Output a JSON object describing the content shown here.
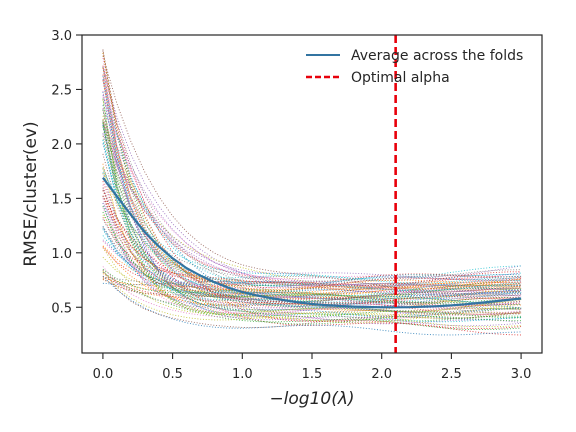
{
  "chart_data": {
    "type": "line",
    "xlabel": "−log10(λ)",
    "ylabel": "RMSE/cluster(ev)",
    "xlim": [
      -0.15,
      3.15
    ],
    "ylim": [
      0.08,
      3.0
    ],
    "xticks": [
      0.0,
      0.5,
      1.0,
      1.5,
      2.0,
      2.5,
      3.0
    ],
    "xtick_labels": [
      "0.0",
      "0.5",
      "1.0",
      "1.5",
      "2.0",
      "2.5",
      "3.0"
    ],
    "yticks": [
      0.5,
      1.0,
      1.5,
      2.0,
      2.5,
      3.0
    ],
    "ytick_labels": [
      "0.5",
      "1.0",
      "1.5",
      "2.0",
      "2.5",
      "3.0"
    ],
    "grid": false,
    "legend_position": "top-right",
    "fold_curves": {
      "style": "dotted",
      "x": [
        0.0,
        0.1,
        0.2,
        0.3,
        0.4,
        0.5,
        0.6,
        0.7,
        0.8,
        0.9,
        1.0,
        1.1,
        1.2,
        1.3,
        1.4,
        1.5,
        1.6,
        1.7,
        1.8,
        1.9,
        2.0,
        2.1,
        2.2,
        2.3,
        2.4,
        2.5,
        2.6,
        2.7,
        2.8,
        2.9,
        3.0
      ],
      "start_range": [
        0.75,
        2.9
      ],
      "end_range": [
        0.3,
        0.92
      ],
      "count": 100,
      "colors": [
        "#1f77b4",
        "#ff7f0e",
        "#2ca02c",
        "#d62728",
        "#9467bd",
        "#8c564b",
        "#e377c2",
        "#7f7f7f",
        "#bcbd22",
        "#17becf"
      ]
    },
    "series": [
      {
        "name": "Average across the folds",
        "color": "#3274a1",
        "x": [
          0.0,
          0.1,
          0.2,
          0.3,
          0.4,
          0.5,
          0.6,
          0.7,
          0.8,
          0.9,
          1.0,
          1.1,
          1.2,
          1.3,
          1.4,
          1.5,
          1.6,
          1.7,
          1.8,
          1.9,
          2.0,
          2.1,
          2.2,
          2.3,
          2.4,
          2.5,
          2.6,
          2.7,
          2.8,
          2.9,
          3.0
        ],
        "y": [
          1.69,
          1.52,
          1.35,
          1.19,
          1.06,
          0.95,
          0.86,
          0.79,
          0.73,
          0.68,
          0.64,
          0.61,
          0.585,
          0.565,
          0.545,
          0.53,
          0.52,
          0.512,
          0.506,
          0.502,
          0.5,
          0.5,
          0.501,
          0.505,
          0.51,
          0.517,
          0.527,
          0.54,
          0.553,
          0.567,
          0.58
        ]
      }
    ],
    "vlines": [
      {
        "name": "Optimal alpha",
        "x": 2.1,
        "color": "#e8000b",
        "style": "dashed"
      }
    ]
  },
  "legend": {
    "average_label": "Average across the folds",
    "optimal_label": "Optimal alpha"
  },
  "axes": {
    "xlabel": "−log10(λ)",
    "ylabel": "RMSE/cluster(ev)"
  }
}
